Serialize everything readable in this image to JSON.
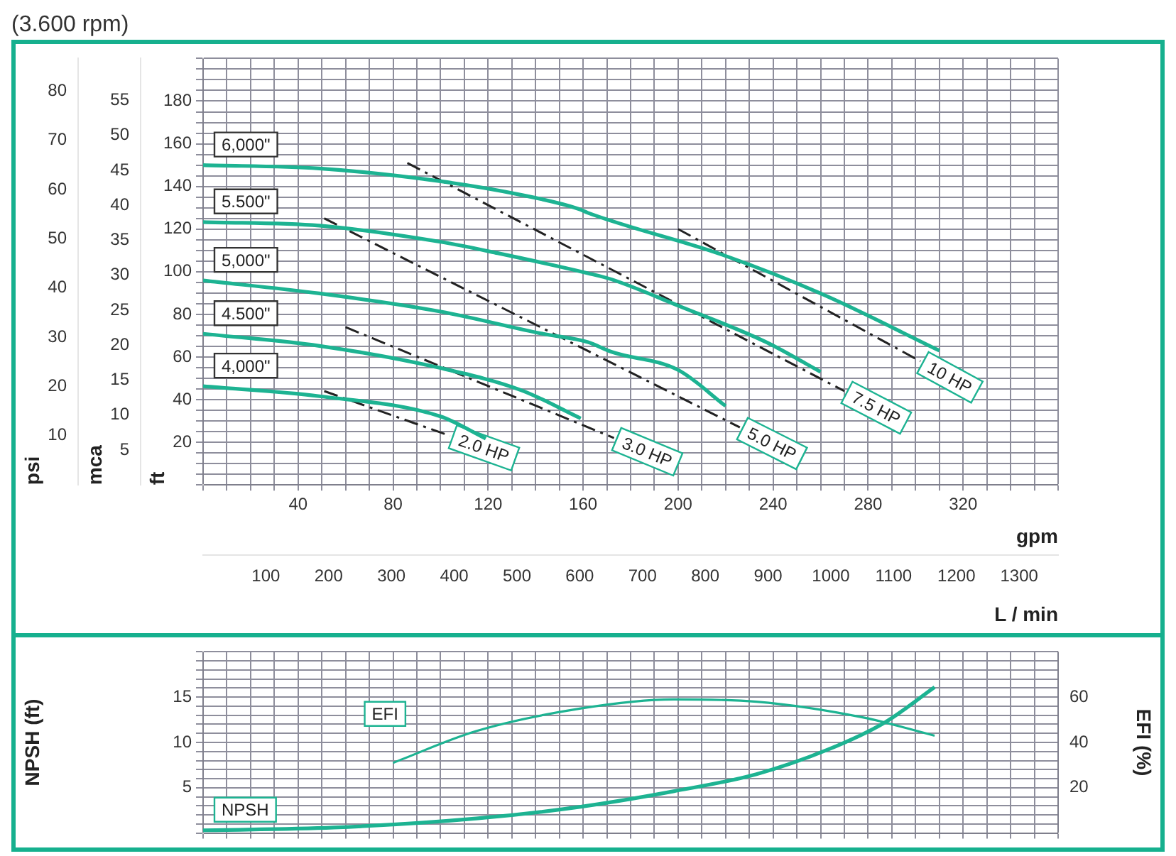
{
  "chart_data": [
    {
      "type": "line",
      "title": "(3.600 rpm)",
      "xlabel": "gpm",
      "x2label": "L / min",
      "ylabel": "ft",
      "y2label": "mca",
      "y3label": "psi",
      "xlim": [
        0,
        360
      ],
      "xticks": [
        {
          "value": 0,
          "label": null
        },
        {
          "value": 10,
          "label": null
        },
        {
          "value": 20,
          "label": null
        },
        {
          "value": 30,
          "label": null
        },
        40,
        {
          "value": 50,
          "label": null
        },
        {
          "value": 60,
          "label": null
        },
        {
          "value": 70,
          "label": null
        },
        80,
        {
          "value": 90,
          "label": null
        },
        {
          "value": 100,
          "label": null
        },
        {
          "value": 110,
          "label": null
        },
        120,
        {
          "value": 130,
          "label": null
        },
        {
          "value": 140,
          "label": null
        },
        {
          "value": 150,
          "label": null
        },
        160,
        {
          "value": 170,
          "label": null
        },
        {
          "value": 180,
          "label": null
        },
        {
          "value": 190,
          "label": null
        },
        200,
        {
          "value": 210,
          "label": null
        },
        {
          "value": 220,
          "label": null
        },
        {
          "value": 230,
          "label": null
        },
        240,
        {
          "value": 250,
          "label": null
        },
        {
          "value": 260,
          "label": null
        },
        {
          "value": 270,
          "label": null
        },
        280,
        {
          "value": 290,
          "label": null
        },
        {
          "value": 300,
          "label": null
        },
        {
          "value": 310,
          "label": null
        },
        320,
        {
          "value": 330,
          "label": null
        },
        {
          "value": 340,
          "label": null
        },
        {
          "value": 350,
          "label": null
        },
        {
          "value": 360,
          "label": null
        }
      ],
      "x2lim": [
        0,
        1362
      ],
      "x2ticks": [
        100,
        200,
        300,
        400,
        500,
        600,
        700,
        800,
        900,
        1000,
        1100,
        1200,
        1300
      ],
      "ylim": [
        0,
        200
      ],
      "yticks": [
        {
          "value": 0,
          "label": null
        },
        {
          "value": 5,
          "label": null
        },
        {
          "value": 10,
          "label": null
        },
        {
          "value": 15,
          "label": null
        },
        20,
        {
          "value": 25,
          "label": null
        },
        {
          "value": 30,
          "label": null
        },
        {
          "value": 35,
          "label": null
        },
        40,
        {
          "value": 45,
          "label": null
        },
        {
          "value": 50,
          "label": null
        },
        {
          "value": 55,
          "label": null
        },
        60,
        {
          "value": 65,
          "label": null
        },
        {
          "value": 70,
          "label": null
        },
        {
          "value": 75,
          "label": null
        },
        80,
        {
          "value": 85,
          "label": null
        },
        {
          "value": 90,
          "label": null
        },
        {
          "value": 95,
          "label": null
        },
        100,
        {
          "value": 105,
          "label": null
        },
        {
          "value": 110,
          "label": null
        },
        {
          "value": 115,
          "label": null
        },
        120,
        {
          "value": 125,
          "label": null
        },
        {
          "value": 130,
          "label": null
        },
        {
          "value": 135,
          "label": null
        },
        140,
        {
          "value": 145,
          "label": null
        },
        {
          "value": 150,
          "label": null
        },
        {
          "value": 155,
          "label": null
        },
        160,
        {
          "value": 165,
          "label": null
        },
        {
          "value": 170,
          "label": null
        },
        {
          "value": 175,
          "label": null
        },
        180,
        {
          "value": 185,
          "label": null
        },
        {
          "value": 190,
          "label": null
        },
        {
          "value": 195,
          "label": null
        },
        {
          "value": 200,
          "label": null
        }
      ],
      "y2lim": [
        0,
        61
      ],
      "y2ticks": [
        5,
        10,
        15,
        20,
        25,
        30,
        35,
        40,
        45,
        50,
        55
      ],
      "y3lim": [
        0,
        86.6
      ],
      "y3ticks": [
        10,
        20,
        30,
        40,
        50,
        60,
        70,
        80
      ],
      "grid": true,
      "legend": false,
      "marker": "none",
      "series": [
        {
          "name": "6,000\"",
          "color": "#1db392",
          "x": [
            0,
            49,
            100,
            134,
            158,
            162,
            219,
            260,
            310
          ],
          "values": [
            150,
            148.4,
            142.4,
            136,
            129.5,
            127.6,
            107.8,
            89.8,
            63
          ]
        },
        {
          "name": "5.500\"",
          "color": "#1db392",
          "x": [
            0,
            49,
            100,
            124,
            162,
            172,
            200,
            237,
            260
          ],
          "values": [
            123.3,
            121.6,
            114,
            108.7,
            99.3,
            96.4,
            84.1,
            67,
            53
          ]
        },
        {
          "name": "5,000\"",
          "color": "#1db392",
          "x": [
            0,
            49,
            100,
            143,
            162,
            172,
            200,
            220
          ],
          "values": [
            95.9,
            89.8,
            81.3,
            70.9,
            67,
            62.4,
            53.9,
            37
          ]
        },
        {
          "name": "4.500\"",
          "color": "#1db392",
          "x": [
            0,
            49,
            100,
            134,
            159
          ],
          "values": [
            70.9,
            65.2,
            54.8,
            44.4,
            31.2
          ]
        },
        {
          "name": "4,000\"",
          "color": "#1db392",
          "x": [
            0,
            49,
            100,
            119
          ],
          "values": [
            46.3,
            41.6,
            32.1,
            21.7
          ]
        },
        {
          "name": "10 HP",
          "color": "#222222",
          "line_style": "dashed",
          "x": [
            200,
            302
          ],
          "values": [
            120,
            58
          ]
        },
        {
          "name": "7.5 HP",
          "color": "#222222",
          "line_style": "dashed",
          "x": [
            86,
            270
          ],
          "values": [
            151,
            44
          ]
        },
        {
          "name": "5.0 HP",
          "color": "#222222",
          "line_style": "dashed",
          "x": [
            51,
            226
          ],
          "values": [
            125,
            27
          ]
        },
        {
          "name": "3.0 HP",
          "color": "#222222",
          "line_style": "dashed",
          "x": [
            60,
            173
          ],
          "values": [
            74,
            22
          ]
        },
        {
          "name": "2.0 HP",
          "color": "#222222",
          "line_style": "dashed",
          "x": [
            51,
            104
          ],
          "values": [
            44,
            23
          ]
        }
      ]
    },
    {
      "type": "line",
      "ylabel": "NPSH (ft)",
      "y2label": "EFI (%)",
      "tick_labels": "y",
      "xlim": [
        0,
        360
      ],
      "xticks": [
        {
          "value": 0,
          "label": null
        },
        {
          "value": 10,
          "label": null
        },
        {
          "value": 20,
          "label": null
        },
        {
          "value": 30,
          "label": null
        },
        {
          "value": 40,
          "label": null
        },
        {
          "value": 50,
          "label": null
        },
        {
          "value": 60,
          "label": null
        },
        {
          "value": 70,
          "label": null
        },
        {
          "value": 80,
          "label": null
        },
        {
          "value": 90,
          "label": null
        },
        {
          "value": 100,
          "label": null
        },
        {
          "value": 110,
          "label": null
        },
        {
          "value": 120,
          "label": null
        },
        {
          "value": 130,
          "label": null
        },
        {
          "value": 140,
          "label": null
        },
        {
          "value": 150,
          "label": null
        },
        {
          "value": 160,
          "label": null
        },
        {
          "value": 170,
          "label": null
        },
        {
          "value": 180,
          "label": null
        },
        {
          "value": 190,
          "label": null
        },
        {
          "value": 200,
          "label": null
        },
        {
          "value": 210,
          "label": null
        },
        {
          "value": 220,
          "label": null
        },
        {
          "value": 230,
          "label": null
        },
        {
          "value": 240,
          "label": null
        },
        {
          "value": 250,
          "label": null
        },
        {
          "value": 260,
          "label": null
        },
        {
          "value": 270,
          "label": null
        },
        {
          "value": 280,
          "label": null
        },
        {
          "value": 290,
          "label": null
        },
        {
          "value": 300,
          "label": null
        },
        {
          "value": 310,
          "label": null
        },
        {
          "value": 320,
          "label": null
        },
        {
          "value": 330,
          "label": null
        },
        {
          "value": 340,
          "label": null
        },
        {
          "value": 350,
          "label": null
        },
        {
          "value": 360,
          "label": null
        }
      ],
      "ylim": [
        0,
        20
      ],
      "yticks": [
        {
          "value": 0,
          "label": null
        },
        {
          "value": 1,
          "label": null
        },
        {
          "value": 2,
          "label": null
        },
        {
          "value": 3,
          "label": null
        },
        {
          "value": 4,
          "label": null
        },
        5,
        {
          "value": 6,
          "label": null
        },
        {
          "value": 7,
          "label": null
        },
        {
          "value": 8,
          "label": null
        },
        {
          "value": 9,
          "label": null
        },
        10,
        {
          "value": 11,
          "label": null
        },
        {
          "value": 12,
          "label": null
        },
        {
          "value": 13,
          "label": null
        },
        {
          "value": 14,
          "label": null
        },
        15,
        {
          "value": 16,
          "label": null
        },
        {
          "value": 17,
          "label": null
        },
        {
          "value": 18,
          "label": null
        },
        {
          "value": 19,
          "label": null
        },
        {
          "value": 20,
          "label": null
        }
      ],
      "y2lim": [
        0,
        80
      ],
      "y2ticks": [
        20,
        40,
        60
      ],
      "grid": true,
      "legend": false,
      "marker": "none",
      "series": [
        {
          "name": "EFI",
          "color": "#1db392",
          "axis": "y2",
          "x": [
            80,
            115,
            159,
            198,
            233,
            278,
            308
          ],
          "values": [
            31,
            45,
            55,
            59,
            58,
            51,
            43
          ]
        },
        {
          "name": "NPSH",
          "color": "#1db392",
          "x": [
            0,
            55,
            115,
            159,
            198,
            233,
            263,
            287,
            308
          ],
          "values": [
            0.3,
            0.6,
            1.6,
            2.9,
            4.6,
            6.5,
            9.2,
            12.2,
            16.1
          ]
        }
      ]
    }
  ]
}
